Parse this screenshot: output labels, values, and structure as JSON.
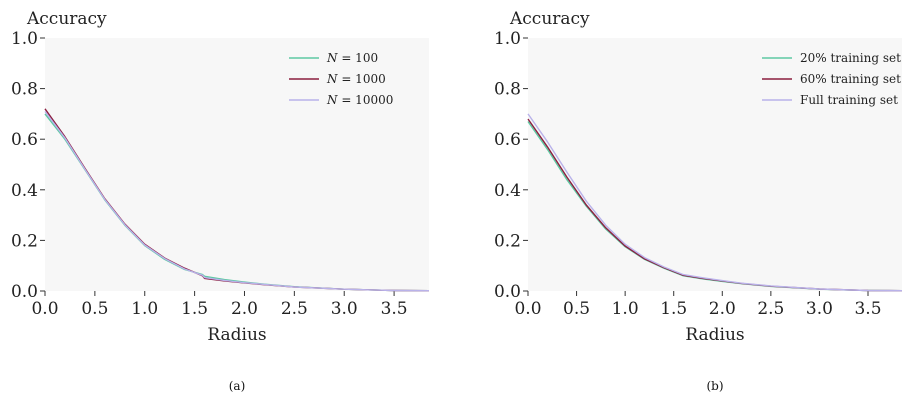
{
  "chart_data": [
    {
      "type": "line",
      "caption": "(a)",
      "ylabel": "Accuracy",
      "xlabel": "Radius",
      "xlim": [
        0.0,
        3.85
      ],
      "ylim": [
        0.0,
        1.0
      ],
      "x_ticks": [
        "0.0",
        "0.5",
        "1.0",
        "1.5",
        "2.0",
        "2.5",
        "3.0",
        "3.5"
      ],
      "y_ticks": [
        "0.0",
        "0.2",
        "0.4",
        "0.6",
        "0.8",
        "1.0"
      ],
      "grid": false,
      "background": "#f7f7f7",
      "legend_position": "top-right",
      "x": [
        0.0,
        0.2,
        0.4,
        0.6,
        0.8,
        1.0,
        1.2,
        1.4,
        1.58,
        1.6,
        1.8,
        2.0,
        2.2,
        2.5,
        3.0,
        3.5,
        3.85
      ],
      "series": [
        {
          "name_prefix": "N",
          "name_suffix": " = 100",
          "color": "#5ec9a3",
          "values": [
            0.7,
            0.6,
            0.48,
            0.36,
            0.26,
            0.18,
            0.125,
            0.085,
            0.065,
            0.058,
            0.045,
            0.035,
            0.027,
            0.017,
            0.007,
            0.002,
            0.001
          ]
        },
        {
          "name_prefix": "N",
          "name_suffix": " = 1000",
          "color": "#8b1e3f",
          "values": [
            0.72,
            0.61,
            0.485,
            0.365,
            0.265,
            0.185,
            0.13,
            0.09,
            0.06,
            0.05,
            0.04,
            0.032,
            0.025,
            0.016,
            0.007,
            0.002,
            0.001
          ]
        },
        {
          "name_prefix": "N",
          "name_suffix": " = 10000",
          "color": "#b9b2ea",
          "values": [
            0.71,
            0.605,
            0.482,
            0.362,
            0.262,
            0.182,
            0.128,
            0.087,
            0.062,
            0.053,
            0.042,
            0.033,
            0.026,
            0.016,
            0.007,
            0.002,
            0.001
          ]
        }
      ]
    },
    {
      "type": "line",
      "caption": "(b)",
      "ylabel": "Accuracy",
      "xlabel": "Radius",
      "xlim": [
        0.0,
        3.85
      ],
      "ylim": [
        0.0,
        1.0
      ],
      "x_ticks": [
        "0.0",
        "0.5",
        "1.0",
        "1.5",
        "2.0",
        "2.5",
        "3.0",
        "3.5"
      ],
      "y_ticks": [
        "0.0",
        "0.2",
        "0.4",
        "0.6",
        "0.8",
        "1.0"
      ],
      "grid": false,
      "background": "#f7f7f7",
      "legend_position": "top-right",
      "x": [
        0.0,
        0.2,
        0.4,
        0.6,
        0.8,
        1.0,
        1.2,
        1.4,
        1.6,
        1.8,
        2.0,
        2.2,
        2.5,
        3.0,
        3.5,
        3.85
      ],
      "series": [
        {
          "name": "20% training set",
          "color": "#5ec9a3",
          "values": [
            0.67,
            0.56,
            0.44,
            0.335,
            0.245,
            0.175,
            0.125,
            0.09,
            0.06,
            0.048,
            0.038,
            0.029,
            0.018,
            0.007,
            0.002,
            0.001
          ]
        },
        {
          "name": "60% training set",
          "color": "#8b1e3f",
          "values": [
            0.68,
            0.57,
            0.45,
            0.34,
            0.25,
            0.178,
            0.127,
            0.092,
            0.062,
            0.05,
            0.04,
            0.03,
            0.019,
            0.008,
            0.002,
            0.001
          ]
        },
        {
          "name": "Full training set",
          "color": "#b9b2ea",
          "values": [
            0.7,
            0.59,
            0.47,
            0.355,
            0.26,
            0.185,
            0.132,
            0.095,
            0.065,
            0.052,
            0.041,
            0.031,
            0.02,
            0.008,
            0.002,
            0.001
          ]
        }
      ]
    }
  ]
}
